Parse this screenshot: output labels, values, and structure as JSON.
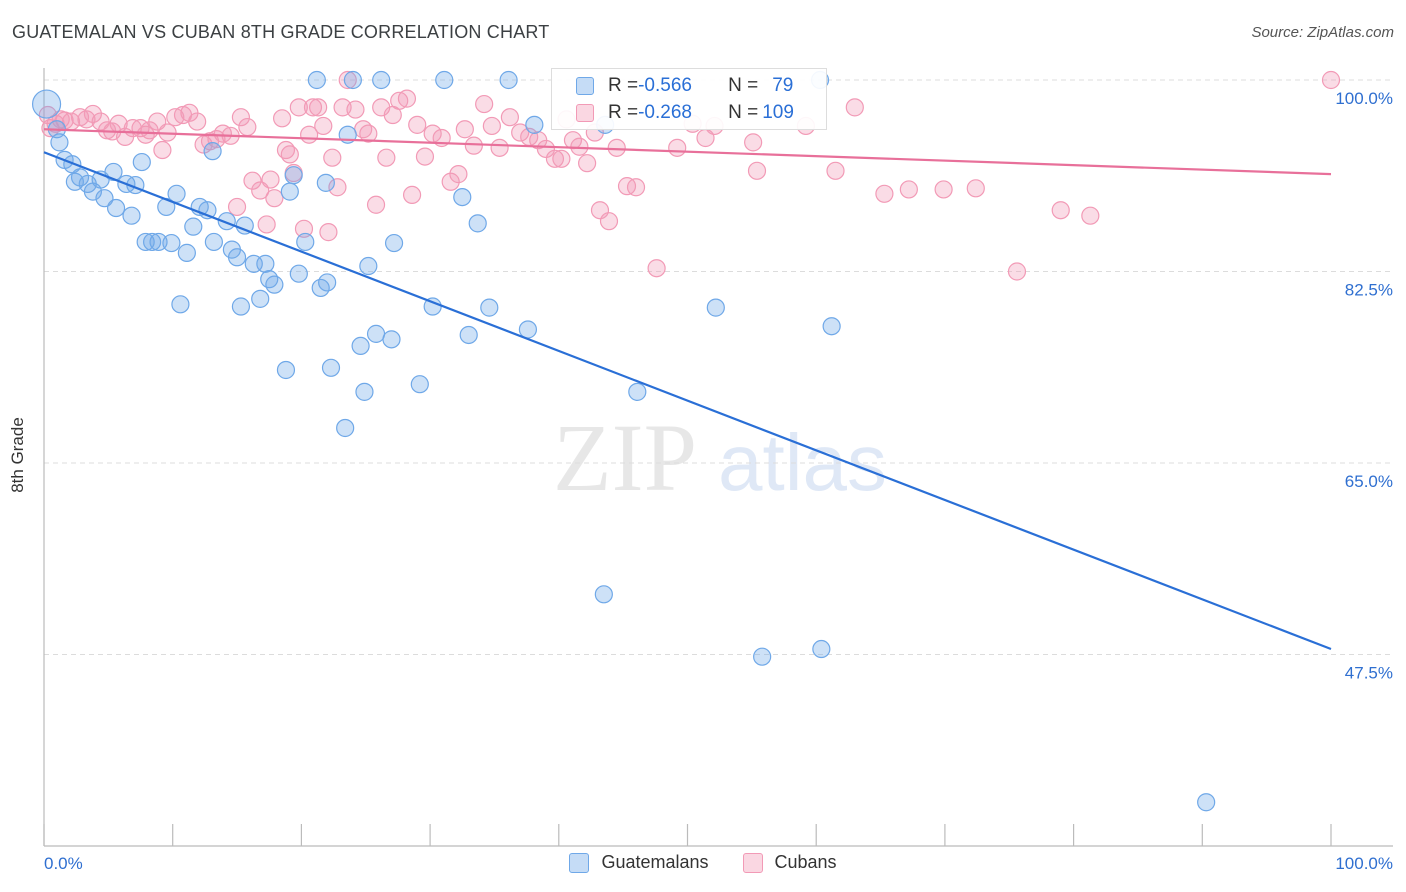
{
  "header": {
    "title": "GUATEMALAN VS CUBAN 8TH GRADE CORRELATION CHART",
    "source": "Source: ZipAtlas.com"
  },
  "watermark": {
    "zip": "ZIP",
    "atlas": "atlas"
  },
  "legend": {
    "rows": [
      {
        "r_label": "R = ",
        "r_value": "-0.566",
        "n_label": "N = ",
        "n_value": "79",
        "color": "#6fa8e8"
      },
      {
        "r_label": "R = ",
        "r_value": "-0.268",
        "n_label": "N = ",
        "n_value": "109",
        "color": "#f29ab6"
      }
    ]
  },
  "bottom_legend": [
    {
      "label": "Guatemalans",
      "color": "#6fa8e8"
    },
    {
      "label": "Cubans",
      "color": "#f29ab6"
    }
  ],
  "chart_data": {
    "type": "scatter",
    "xlabel": "",
    "ylabel": "8th Grade",
    "xlim": [
      0,
      100
    ],
    "ylim": [
      30,
      100
    ],
    "x_tick_labels": [
      "0.0%",
      "100.0%"
    ],
    "y_ticks": [
      100,
      82.5,
      65,
      47.5
    ],
    "y_tick_labels": [
      "100.0%",
      "82.5%",
      "65.0%",
      "47.5%"
    ],
    "grid": "horizontal dashed",
    "legend_placement": "top-center",
    "series": [
      {
        "name": "Guatemalans",
        "color": "#6fa8e8",
        "line_color": "#2a6fd6",
        "trend": {
          "x": [
            0,
            100
          ],
          "y": [
            93.4,
            48.0
          ]
        },
        "points": [
          [
            0.2,
            97.8
          ],
          [
            1.0,
            95.5
          ],
          [
            1.2,
            94.3
          ],
          [
            1.6,
            92.7
          ],
          [
            2.2,
            92.3
          ],
          [
            2.4,
            90.7
          ],
          [
            2.8,
            91.1
          ],
          [
            3.4,
            90.5
          ],
          [
            3.8,
            89.8
          ],
          [
            4.4,
            90.9
          ],
          [
            4.7,
            89.2
          ],
          [
            5.4,
            91.6
          ],
          [
            5.6,
            88.3
          ],
          [
            6.4,
            90.5
          ],
          [
            6.8,
            87.6
          ],
          [
            7.1,
            90.4
          ],
          [
            7.6,
            92.5
          ],
          [
            7.9,
            85.2
          ],
          [
            8.4,
            85.2
          ],
          [
            8.9,
            85.2
          ],
          [
            9.5,
            88.4
          ],
          [
            9.9,
            85.1
          ],
          [
            10.3,
            89.6
          ],
          [
            10.6,
            79.5
          ],
          [
            11.1,
            84.2
          ],
          [
            11.6,
            86.6
          ],
          [
            12.1,
            88.4
          ],
          [
            12.7,
            88.1
          ],
          [
            13.1,
            93.5
          ],
          [
            13.2,
            85.2
          ],
          [
            14.2,
            87.1
          ],
          [
            14.6,
            84.5
          ],
          [
            15.0,
            83.8
          ],
          [
            15.3,
            79.3
          ],
          [
            15.6,
            86.7
          ],
          [
            16.3,
            83.2
          ],
          [
            16.8,
            80.0
          ],
          [
            17.2,
            83.2
          ],
          [
            17.5,
            81.8
          ],
          [
            17.9,
            81.3
          ],
          [
            18.8,
            73.5
          ],
          [
            19.1,
            89.8
          ],
          [
            19.4,
            91.3
          ],
          [
            19.8,
            82.3
          ],
          [
            20.3,
            85.2
          ],
          [
            21.2,
            100.0
          ],
          [
            21.5,
            81.0
          ],
          [
            21.9,
            90.6
          ],
          [
            22.0,
            81.5
          ],
          [
            22.3,
            73.7
          ],
          [
            23.4,
            68.2
          ],
          [
            23.6,
            95.0
          ],
          [
            24.0,
            100.0
          ],
          [
            24.6,
            75.7
          ],
          [
            24.9,
            71.5
          ],
          [
            25.2,
            83.0
          ],
          [
            25.8,
            76.8
          ],
          [
            26.2,
            100.0
          ],
          [
            27.0,
            76.3
          ],
          [
            27.2,
            85.1
          ],
          [
            29.2,
            72.2
          ],
          [
            30.2,
            79.3
          ],
          [
            31.1,
            100.0
          ],
          [
            32.5,
            89.3
          ],
          [
            33.0,
            76.7
          ],
          [
            33.7,
            86.9
          ],
          [
            34.6,
            79.2
          ],
          [
            36.1,
            100.0
          ],
          [
            37.6,
            77.2
          ],
          [
            38.1,
            95.9
          ],
          [
            43.5,
            53.0
          ],
          [
            43.6,
            95.9
          ],
          [
            46.1,
            71.5
          ],
          [
            52.2,
            79.2
          ],
          [
            55.8,
            47.3
          ],
          [
            60.3,
            100.0
          ],
          [
            60.4,
            48.0
          ],
          [
            61.2,
            77.5
          ],
          [
            90.3,
            34.0
          ]
        ]
      },
      {
        "name": "Cubans",
        "color": "#f29ab6",
        "line_color": "#e8709a",
        "trend": {
          "x": [
            0,
            100
          ],
          "y": [
            95.5,
            91.4
          ]
        },
        "points": [
          [
            0.3,
            96.8
          ],
          [
            0.5,
            95.6
          ],
          [
            0.9,
            96.0
          ],
          [
            1.3,
            96.4
          ],
          [
            1.6,
            96.3
          ],
          [
            2.1,
            96.2
          ],
          [
            2.8,
            96.6
          ],
          [
            3.3,
            96.4
          ],
          [
            3.8,
            96.9
          ],
          [
            4.4,
            96.2
          ],
          [
            4.9,
            95.4
          ],
          [
            5.3,
            95.3
          ],
          [
            5.8,
            96.0
          ],
          [
            6.3,
            94.8
          ],
          [
            6.9,
            95.6
          ],
          [
            7.5,
            95.6
          ],
          [
            7.9,
            95.0
          ],
          [
            8.2,
            95.4
          ],
          [
            8.8,
            96.2
          ],
          [
            9.2,
            93.6
          ],
          [
            9.6,
            95.2
          ],
          [
            10.2,
            96.6
          ],
          [
            10.8,
            96.8
          ],
          [
            11.3,
            97.0
          ],
          [
            11.9,
            96.2
          ],
          [
            12.4,
            94.1
          ],
          [
            12.9,
            94.4
          ],
          [
            13.4,
            94.6
          ],
          [
            13.9,
            95.1
          ],
          [
            14.5,
            94.9
          ],
          [
            15.0,
            88.4
          ],
          [
            15.3,
            96.6
          ],
          [
            15.8,
            95.7
          ],
          [
            16.2,
            90.8
          ],
          [
            16.8,
            89.9
          ],
          [
            17.3,
            86.8
          ],
          [
            17.6,
            90.9
          ],
          [
            17.9,
            89.2
          ],
          [
            18.5,
            96.5
          ],
          [
            18.8,
            93.6
          ],
          [
            19.1,
            93.2
          ],
          [
            19.4,
            91.5
          ],
          [
            19.8,
            97.5
          ],
          [
            20.2,
            86.4
          ],
          [
            20.6,
            95.0
          ],
          [
            20.9,
            97.5
          ],
          [
            21.3,
            97.5
          ],
          [
            21.7,
            95.8
          ],
          [
            22.1,
            86.1
          ],
          [
            22.4,
            92.9
          ],
          [
            22.8,
            90.2
          ],
          [
            23.2,
            97.5
          ],
          [
            23.6,
            100.0
          ],
          [
            24.2,
            97.3
          ],
          [
            24.8,
            95.5
          ],
          [
            25.2,
            95.1
          ],
          [
            25.8,
            88.6
          ],
          [
            26.2,
            97.5
          ],
          [
            26.6,
            92.9
          ],
          [
            27.1,
            96.8
          ],
          [
            27.6,
            98.1
          ],
          [
            28.2,
            98.3
          ],
          [
            28.6,
            89.5
          ],
          [
            29.0,
            95.9
          ],
          [
            29.6,
            93.0
          ],
          [
            30.2,
            95.1
          ],
          [
            30.9,
            94.7
          ],
          [
            31.6,
            90.7
          ],
          [
            32.2,
            91.4
          ],
          [
            32.7,
            95.5
          ],
          [
            33.4,
            94.0
          ],
          [
            34.2,
            97.8
          ],
          [
            34.8,
            95.8
          ],
          [
            35.4,
            93.8
          ],
          [
            36.2,
            96.6
          ],
          [
            37.0,
            95.2
          ],
          [
            37.7,
            94.8
          ],
          [
            38.4,
            94.5
          ],
          [
            39.0,
            93.7
          ],
          [
            39.7,
            92.8
          ],
          [
            40.2,
            92.8
          ],
          [
            40.6,
            96.4
          ],
          [
            41.1,
            94.5
          ],
          [
            41.6,
            93.9
          ],
          [
            42.2,
            92.4
          ],
          [
            42.8,
            95.2
          ],
          [
            43.2,
            88.1
          ],
          [
            43.9,
            87.1
          ],
          [
            44.5,
            93.8
          ],
          [
            45.3,
            90.3
          ],
          [
            46.0,
            90.2
          ],
          [
            47.6,
            82.8
          ],
          [
            49.2,
            93.8
          ],
          [
            50.4,
            96.0
          ],
          [
            51.4,
            94.7
          ],
          [
            52.1,
            95.8
          ],
          [
            55.1,
            94.3
          ],
          [
            55.4,
            91.7
          ],
          [
            59.2,
            95.8
          ],
          [
            61.5,
            91.7
          ],
          [
            63.0,
            97.5
          ],
          [
            65.3,
            89.6
          ],
          [
            67.2,
            90.0
          ],
          [
            69.9,
            90.0
          ],
          [
            72.4,
            90.1
          ],
          [
            75.6,
            82.5
          ],
          [
            79.0,
            88.1
          ],
          [
            81.3,
            87.6
          ],
          [
            100.0,
            100.0
          ]
        ]
      }
    ]
  }
}
